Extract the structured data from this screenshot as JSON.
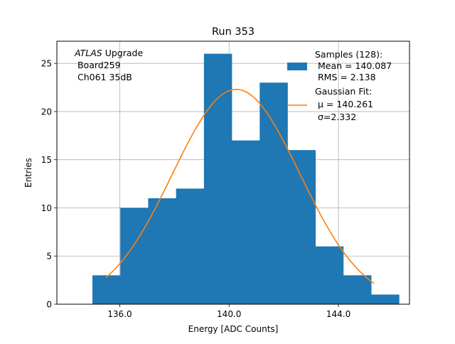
{
  "chart_data": {
    "type": "bar",
    "title": "Run 353",
    "xlabel": "Energy [ADC Counts]",
    "ylabel": "Entries",
    "xlim": [
      133.7,
      146.6
    ],
    "ylim": [
      0,
      27.3
    ],
    "xticks": [
      136.0,
      140.0,
      144.0
    ],
    "xtick_labels": [
      "136.0",
      "140.0",
      "144.0"
    ],
    "yticks": [
      0,
      5,
      10,
      15,
      20,
      25
    ],
    "grid": true,
    "legend_position": "top-right",
    "bin_edges": [
      135.0,
      136.02,
      137.04,
      138.06,
      139.08,
      140.1,
      141.12,
      142.14,
      143.16,
      144.18,
      145.2,
      146.22
    ],
    "series": [
      {
        "name": "Samples (128):",
        "type": "histogram",
        "color": "#1f77b4",
        "values": [
          3,
          10,
          11,
          12,
          26,
          17,
          23,
          16,
          6,
          3,
          1
        ]
      },
      {
        "name": "Gaussian Fit:",
        "type": "line",
        "color": "#ff7f0e",
        "function": "gaussian",
        "amplitude": 22.3,
        "mu": 140.261,
        "sigma": 2.332,
        "x_range": [
          135.5,
          145.3
        ]
      }
    ],
    "legend": {
      "samples_title": "Samples (128):",
      "samples_mean": " Mean = 140.087",
      "samples_rms": " RMS = 2.138",
      "fit_title": "Gaussian Fit:",
      "fit_mu": " μ = 140.261",
      "fit_sigma": " σ=2.332"
    },
    "annotation": {
      "italic": "ATLAS",
      "line1_rest": " Upgrade",
      "line2": " Board259",
      "line3": " Ch061 35dB"
    }
  }
}
